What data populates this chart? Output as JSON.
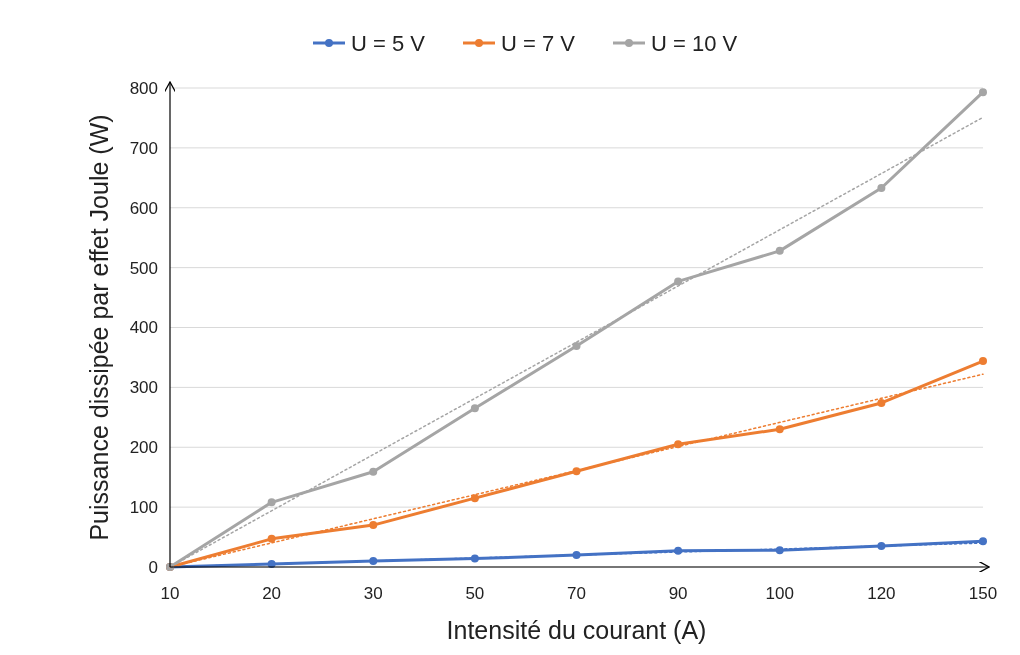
{
  "chart_data": {
    "type": "line",
    "xlabel": "Intensité du courant (A)",
    "ylabel": "Puissance dissipée par effet Joule (W)",
    "categories": [
      "10",
      "20",
      "30",
      "50",
      "70",
      "90",
      "100",
      "120",
      "150"
    ],
    "ylim": [
      0,
      800
    ],
    "yticks": [
      0,
      100,
      200,
      300,
      400,
      500,
      600,
      700,
      800
    ],
    "grid": "y",
    "legend": "top",
    "marker": "circle",
    "line_style": "solid",
    "series": [
      {
        "name": "U = 5 V",
        "color": "#4472c4",
        "values": [
          0,
          5,
          10,
          14,
          20,
          27,
          28,
          35,
          43
        ]
      },
      {
        "name": "U = 7 V",
        "color": "#ed7d31",
        "values": [
          0,
          47,
          70,
          115,
          160,
          205,
          230,
          274,
          344
        ]
      },
      {
        "name": "U = 10 V",
        "color": "#a5a5a5",
        "values": [
          0,
          108,
          159,
          265,
          369,
          477,
          528,
          633,
          793
        ]
      },
      {
        "color": "#4472c4",
        "x": [
          "10",
          "150"
        ],
        "values": [
          0,
          40
        ],
        "marker": "none",
        "line_style": "dotted"
      },
      {
        "color": "#ed7d31",
        "x": [
          "10",
          "150"
        ],
        "values": [
          0,
          322
        ],
        "marker": "none",
        "line_style": "dotted"
      },
      {
        "color": "#a5a5a5",
        "x": [
          "10",
          "150"
        ],
        "values": [
          0,
          751
        ],
        "marker": "none",
        "line_style": "dotted"
      }
    ]
  }
}
